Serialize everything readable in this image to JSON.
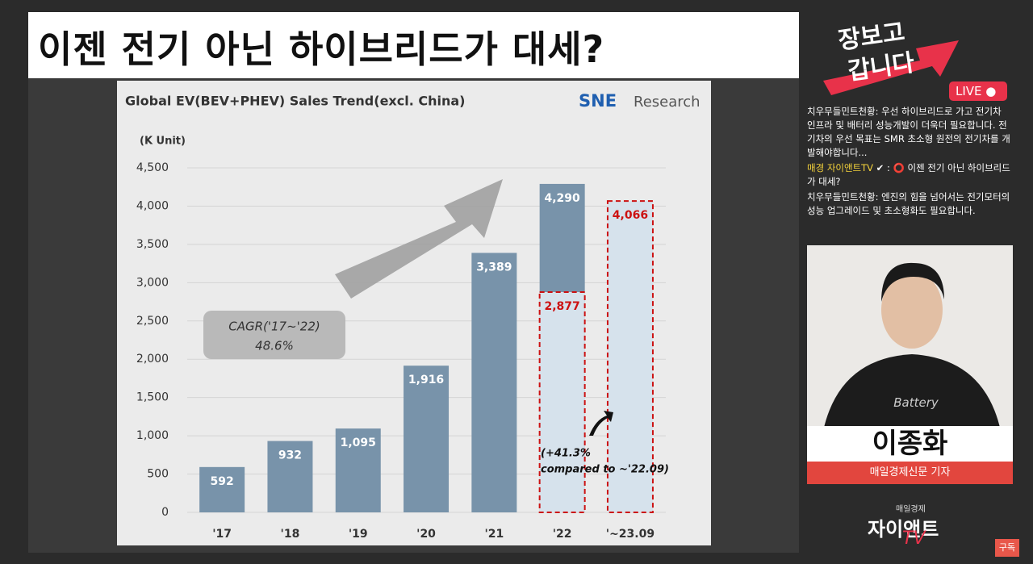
{
  "headline": "이젠 전기 아닌 하이브리드가 대세?",
  "chart_data": {
    "type": "bar",
    "title": "Global EV(BEV+PHEV)  Sales Trend(excl. China)",
    "logo": {
      "mark": "SNE",
      "text": "Research"
    },
    "unit_label": "(K Unit)",
    "categories": [
      "'17",
      "'18",
      "'19",
      "'20",
      "'21",
      "'22",
      "'~23.09"
    ],
    "values": [
      592,
      932,
      1095,
      1916,
      3389,
      4290,
      null
    ],
    "value_labels": [
      "592",
      "932",
      "1,095",
      "1,916",
      "3,389",
      "4,290",
      null
    ],
    "partial_values": [
      null,
      null,
      null,
      null,
      null,
      2877,
      4066
    ],
    "partial_value_labels": [
      null,
      null,
      null,
      null,
      null,
      "2,877",
      "4,066"
    ],
    "color": "#7893aa",
    "partial_color": "#d6e2ec",
    "partial_outline": "#cc1111",
    "ylim": [
      0,
      4500
    ],
    "yticks": [
      0,
      500,
      {
        "value": 1000,
        "label": "1,000"
      },
      {
        "value": 1500,
        "label": "1,500"
      },
      {
        "value": 2000,
        "label": "2,000"
      },
      {
        "value": 2500,
        "label": "2,500"
      },
      {
        "value": 3000,
        "label": "3,000"
      },
      {
        "value": 3500,
        "label": "3,500"
      },
      {
        "value": 4000,
        "label": "4,000"
      },
      {
        "value": 4500,
        "label": "4,500"
      }
    ],
    "grid": true,
    "annotations": {
      "cagr_label": "CAGR('17~'22)",
      "cagr_value": "48.6%",
      "growth": "(+41.3%",
      "growth_note": "compared to ~'22.09)"
    }
  },
  "channel": {
    "logo": [
      "장보고",
      "갑니다"
    ],
    "live": "LIVE"
  },
  "chat": [
    {
      "user": "치우무들민트천황:",
      "text": "우선 하이브리드로 가고 전기차 인프라 및 배터리 성능개발이 더욱더 필요합니다. 전기차의 우선 목표는 SMR 초소형 원전의 전기차를 개발해야합니다..."
    },
    {
      "user": "매경 자이앤트TV",
      "text": "이젠 전기 아닌 하이브리드가 대세?"
    },
    {
      "user": "치우무들민트천황:",
      "text": "엔진의 힘을 넘어서는 전기모터의 성능 업그레이드 및 초소형화도 필요합니다."
    }
  ],
  "guest": {
    "name": "이종화",
    "role": "매일경제신문 기자"
  },
  "brand": {
    "top": "매일경제",
    "name": "자이앤트",
    "tv": "TV"
  },
  "subscribe": "구독"
}
